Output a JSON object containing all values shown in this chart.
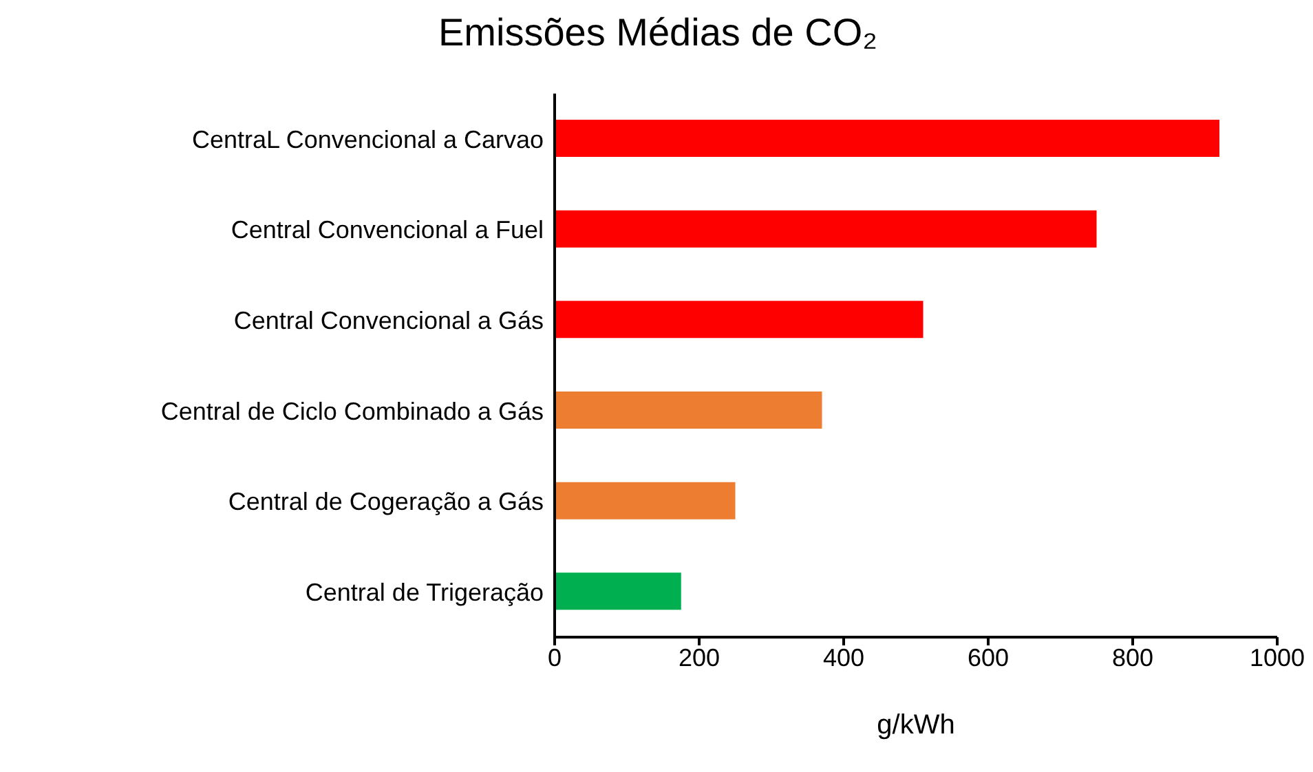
{
  "chart_data": {
    "type": "bar",
    "orientation": "horizontal",
    "title": "Emissões Médias de CO₂",
    "xlabel": "g/kWh",
    "categories": [
      "CentraL Convencional a Carvao",
      "Central Convencional a Fuel",
      "Central Convencional a Gás",
      "Central de Ciclo Combinado a Gás",
      "Central de Cogeração a Gás",
      "Central de Trigeração"
    ],
    "values": [
      920,
      750,
      510,
      370,
      250,
      175
    ],
    "colors": [
      "#ff0000",
      "#ff0000",
      "#ff0000",
      "#ed7d31",
      "#ed7d31",
      "#00b050"
    ],
    "xlim": [
      0,
      1000
    ],
    "xticks": [
      0,
      200,
      400,
      600,
      800,
      1000
    ],
    "grid": false,
    "legend": false
  }
}
